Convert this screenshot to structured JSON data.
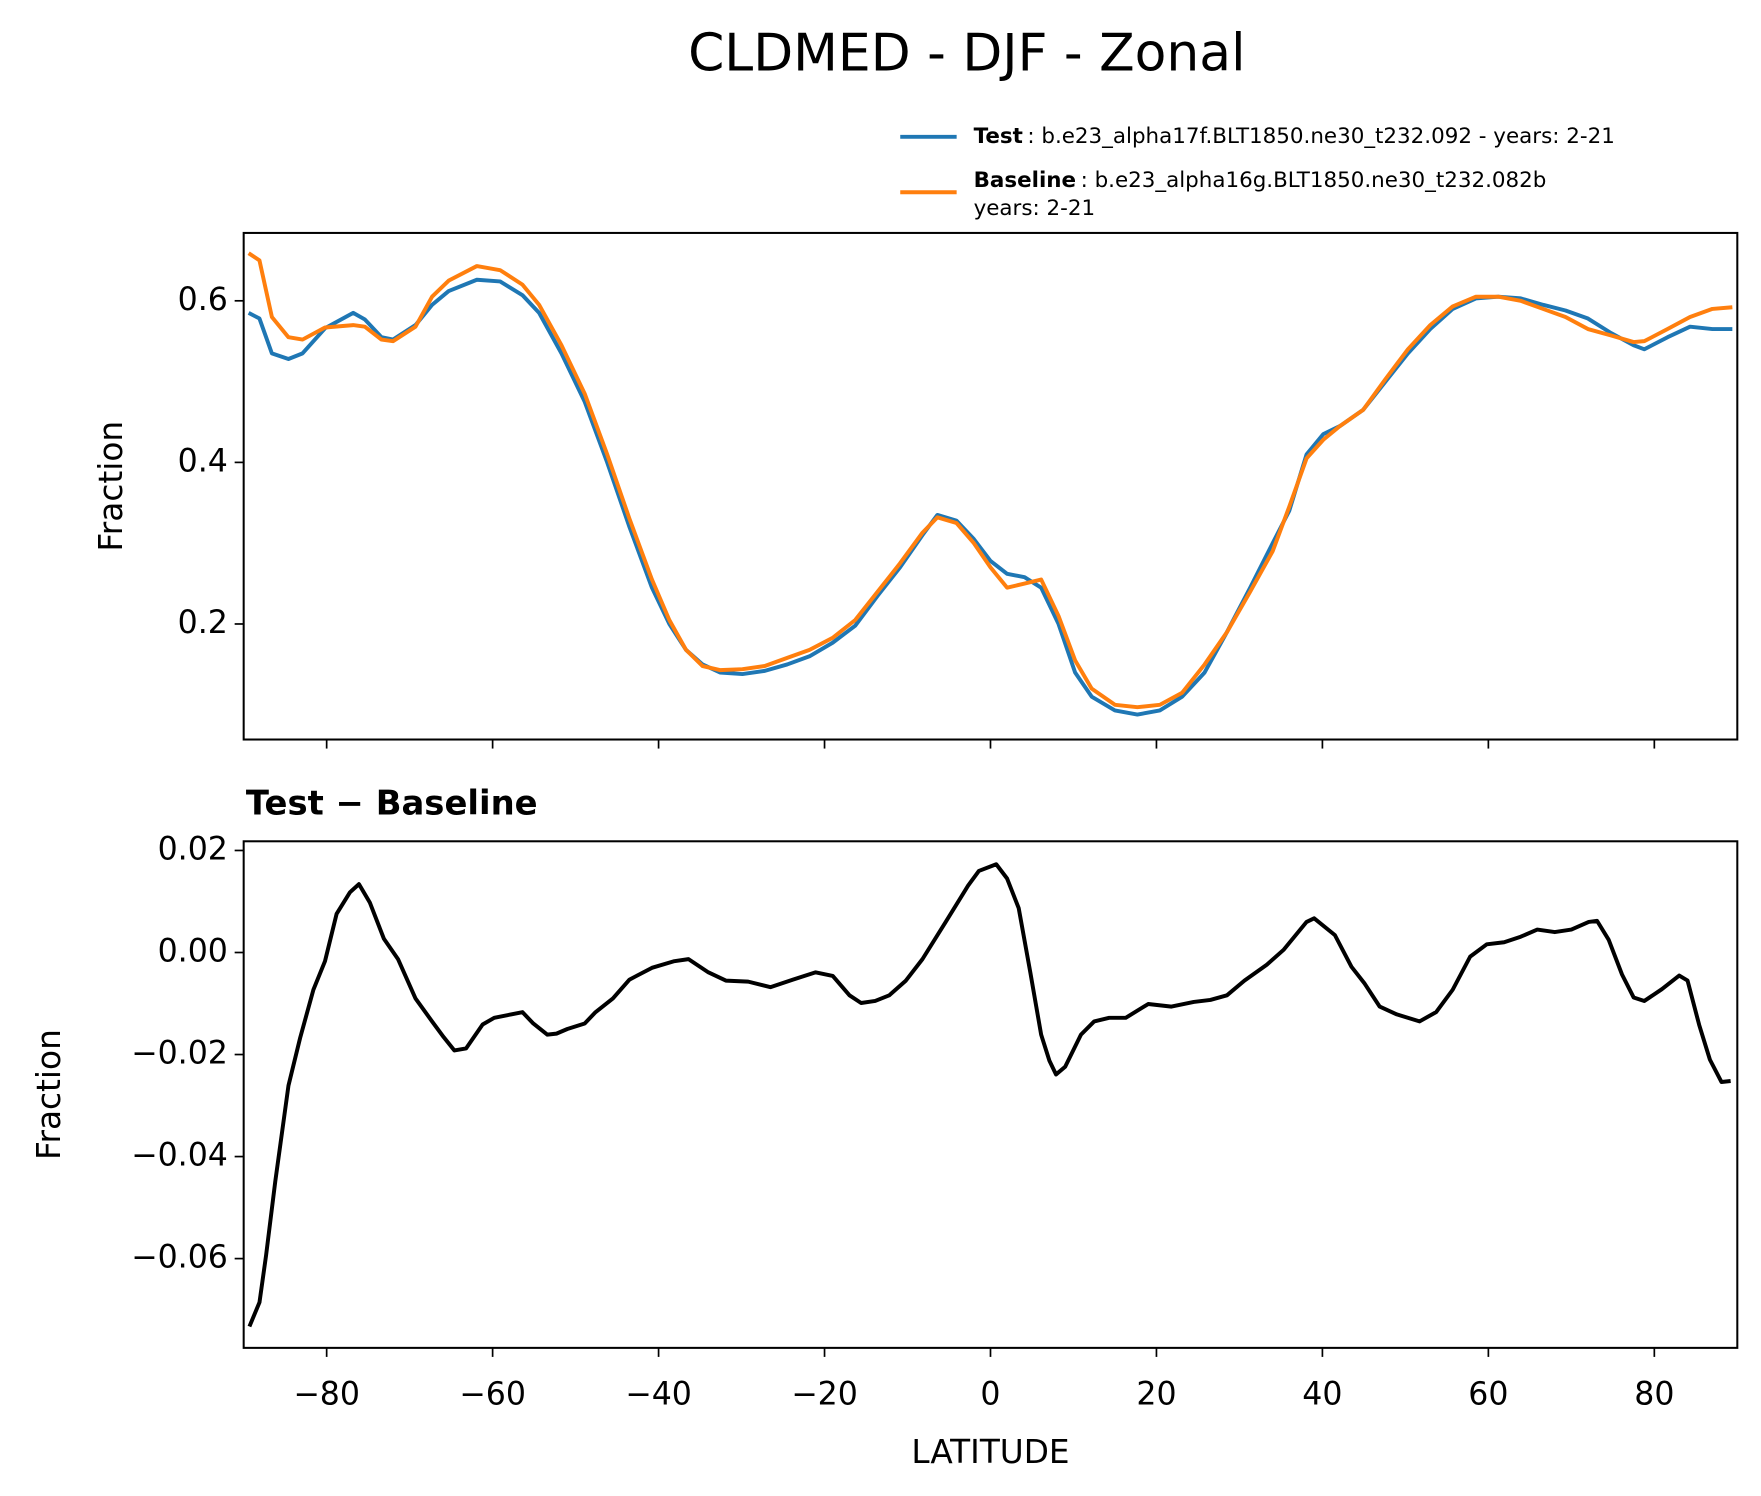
{
  "suptitle": "CLDMED - DJF - Zonal",
  "chart_data": [
    {
      "type": "line",
      "ylabel": "Fraction",
      "x": [
        -89.4,
        -88.1,
        -86.6,
        -84.6,
        -82.9,
        -80.2,
        -76.8,
        -75.4,
        -73.4,
        -72.0,
        -69.3,
        -67.3,
        -65.3,
        -61.9,
        -59.1,
        -56.4,
        -54.4,
        -51.7,
        -48.9,
        -46.2,
        -43.5,
        -40.8,
        -38.7,
        -36.7,
        -34.7,
        -32.6,
        -29.9,
        -27.2,
        -24.5,
        -21.8,
        -19.0,
        -16.3,
        -13.6,
        -10.9,
        -8.2,
        -6.4,
        -4.1,
        -2.0,
        0.0,
        2.0,
        4.1,
        6.1,
        8.2,
        10.2,
        12.2,
        15.0,
        17.7,
        20.4,
        23.1,
        25.8,
        28.5,
        31.3,
        34.0,
        36.0,
        38.1,
        40.1,
        42.1,
        44.9,
        47.6,
        50.3,
        53.0,
        55.7,
        58.5,
        61.2,
        63.9,
        66.6,
        69.3,
        72.0,
        74.8,
        77.5,
        78.8,
        81.6,
        84.3,
        87.0,
        89.4
      ],
      "series": [
        {
          "name": "Test",
          "description": [
            ": b.e23_alpha17f.BLT1850.ne30_t232.092 - years: 2-21"
          ],
          "color": "#1f77b4",
          "values": [
            0.585,
            0.578,
            0.535,
            0.528,
            0.535,
            0.566,
            0.585,
            0.577,
            0.555,
            0.552,
            0.57,
            0.595,
            0.612,
            0.626,
            0.624,
            0.607,
            0.585,
            0.535,
            0.475,
            0.4,
            0.32,
            0.245,
            0.2,
            0.168,
            0.15,
            0.14,
            0.138,
            0.142,
            0.15,
            0.16,
            0.177,
            0.198,
            0.235,
            0.27,
            0.31,
            0.335,
            0.328,
            0.305,
            0.278,
            0.262,
            0.258,
            0.245,
            0.2,
            0.14,
            0.11,
            0.093,
            0.088,
            0.093,
            0.11,
            0.14,
            0.19,
            0.245,
            0.3,
            0.34,
            0.41,
            0.435,
            0.445,
            0.465,
            0.5,
            0.535,
            0.565,
            0.59,
            0.603,
            0.605,
            0.603,
            0.595,
            0.588,
            0.578,
            0.56,
            0.545,
            0.54,
            0.555,
            0.568,
            0.565,
            0.565
          ]
        },
        {
          "name": "Baseline",
          "description": [
            ": b.e23_alpha16g.BLT1850.ne30_t232.082b",
            "years: 2-21"
          ],
          "color": "#ff7f0e",
          "values": [
            0.659,
            0.65,
            0.58,
            0.555,
            0.552,
            0.567,
            0.57,
            0.568,
            0.552,
            0.55,
            0.568,
            0.605,
            0.625,
            0.643,
            0.638,
            0.62,
            0.595,
            0.545,
            0.485,
            0.41,
            0.33,
            0.255,
            0.205,
            0.168,
            0.148,
            0.143,
            0.144,
            0.148,
            0.158,
            0.168,
            0.183,
            0.205,
            0.24,
            0.275,
            0.313,
            0.332,
            0.325,
            0.3,
            0.27,
            0.245,
            0.25,
            0.255,
            0.21,
            0.155,
            0.12,
            0.1,
            0.097,
            0.1,
            0.115,
            0.15,
            0.19,
            0.24,
            0.29,
            0.345,
            0.405,
            0.428,
            0.445,
            0.465,
            0.503,
            0.54,
            0.57,
            0.593,
            0.605,
            0.605,
            0.6,
            0.59,
            0.58,
            0.565,
            0.557,
            0.549,
            0.55,
            0.565,
            0.58,
            0.59,
            0.592
          ]
        }
      ],
      "xlim": [
        -90,
        90
      ],
      "xticks": [
        -80,
        -60,
        -40,
        -20,
        0,
        20,
        40,
        60,
        80
      ],
      "ylim": [
        0.057,
        0.684
      ],
      "yticks": [
        0.2,
        0.4,
        0.6
      ]
    },
    {
      "type": "line",
      "title": "Test − Baseline",
      "xlabel": "LATITUDE",
      "ylabel": "Fraction",
      "x": [
        -89.3,
        -88.1,
        -87.3,
        -86.2,
        -84.6,
        -83.2,
        -81.6,
        -80.2,
        -78.8,
        -77.2,
        -76.1,
        -74.8,
        -73.1,
        -71.4,
        -69.3,
        -67.3,
        -65.9,
        -64.6,
        -63.2,
        -61.2,
        -59.8,
        -56.4,
        -55.1,
        -53.4,
        -52.3,
        -51.0,
        -48.9,
        -47.6,
        -45.5,
        -43.5,
        -40.8,
        -38.1,
        -36.4,
        -34.0,
        -31.9,
        -29.2,
        -26.5,
        -23.8,
        -21.1,
        -19.0,
        -17.0,
        -15.6,
        -13.9,
        -12.2,
        -10.2,
        -8.2,
        -5.4,
        -2.7,
        -1.4,
        0.7,
        2.0,
        3.4,
        4.8,
        6.1,
        7.1,
        7.9,
        9.0,
        10.9,
        12.5,
        14.3,
        16.3,
        19.0,
        21.8,
        24.5,
        26.5,
        28.5,
        30.6,
        33.3,
        35.3,
        38.1,
        39.0,
        41.5,
        43.5,
        45.1,
        46.9,
        48.9,
        51.7,
        53.7,
        55.7,
        57.8,
        59.8,
        61.9,
        63.9,
        65.9,
        68.0,
        70.0,
        72.1,
        73.1,
        74.5,
        76.1,
        77.5,
        78.8,
        80.9,
        83.0,
        84.0,
        85.4,
        86.7,
        88.1,
        89.2
      ],
      "series": [
        {
          "color": "#000000",
          "values": [
            -0.0733,
            -0.0686,
            -0.0593,
            -0.0449,
            -0.0261,
            -0.0168,
            -0.0073,
            -0.0017,
            0.0076,
            0.0118,
            0.0134,
            0.0098,
            0.0027,
            -0.0013,
            -0.009,
            -0.0135,
            -0.0166,
            -0.0192,
            -0.0188,
            -0.0141,
            -0.0128,
            -0.0117,
            -0.0139,
            -0.0161,
            -0.0159,
            -0.015,
            -0.0139,
            -0.0117,
            -0.009,
            -0.0053,
            -0.003,
            -0.0017,
            -0.0013,
            -0.0039,
            -0.0055,
            -0.0057,
            -0.0068,
            -0.0053,
            -0.0039,
            -0.0046,
            -0.0084,
            -0.0099,
            -0.0095,
            -0.0084,
            -0.0055,
            -0.0013,
            0.006,
            0.0131,
            0.016,
            0.0173,
            0.0145,
            0.0087,
            -0.0039,
            -0.0161,
            -0.0212,
            -0.0239,
            -0.0224,
            -0.0161,
            -0.0135,
            -0.0128,
            -0.0128,
            -0.0101,
            -0.0106,
            -0.0097,
            -0.0093,
            -0.0084,
            -0.0055,
            -0.0024,
            0.0005,
            0.006,
            0.0067,
            0.0034,
            -0.0028,
            -0.0061,
            -0.0106,
            -0.0121,
            -0.0135,
            -0.0117,
            -0.0073,
            -0.0008,
            0.0016,
            0.002,
            0.0031,
            0.0045,
            0.004,
            0.0045,
            0.006,
            0.0062,
            0.0025,
            -0.0043,
            -0.0088,
            -0.0095,
            -0.0072,
            -0.0045,
            -0.0055,
            -0.0142,
            -0.021,
            -0.0254,
            -0.0252
          ]
        }
      ],
      "xlim": [
        -90,
        90
      ],
      "xticks": [
        {
          "value": -80,
          "label": "−80"
        },
        {
          "value": -60,
          "label": "−60"
        },
        {
          "value": -40,
          "label": "−40"
        },
        {
          "value": -20,
          "label": "−20"
        },
        0,
        20,
        40,
        60,
        80
      ],
      "ylim": [
        -0.0775,
        0.0218
      ],
      "yticks": [
        {
          "value": -0.06,
          "label": "−0.06"
        },
        {
          "value": -0.04,
          "label": "−0.04"
        },
        {
          "value": -0.02,
          "label": "−0.02"
        },
        {
          "value": 0,
          "label": "0.00"
        },
        {
          "value": 0.02,
          "label": "0.02"
        }
      ]
    }
  ]
}
